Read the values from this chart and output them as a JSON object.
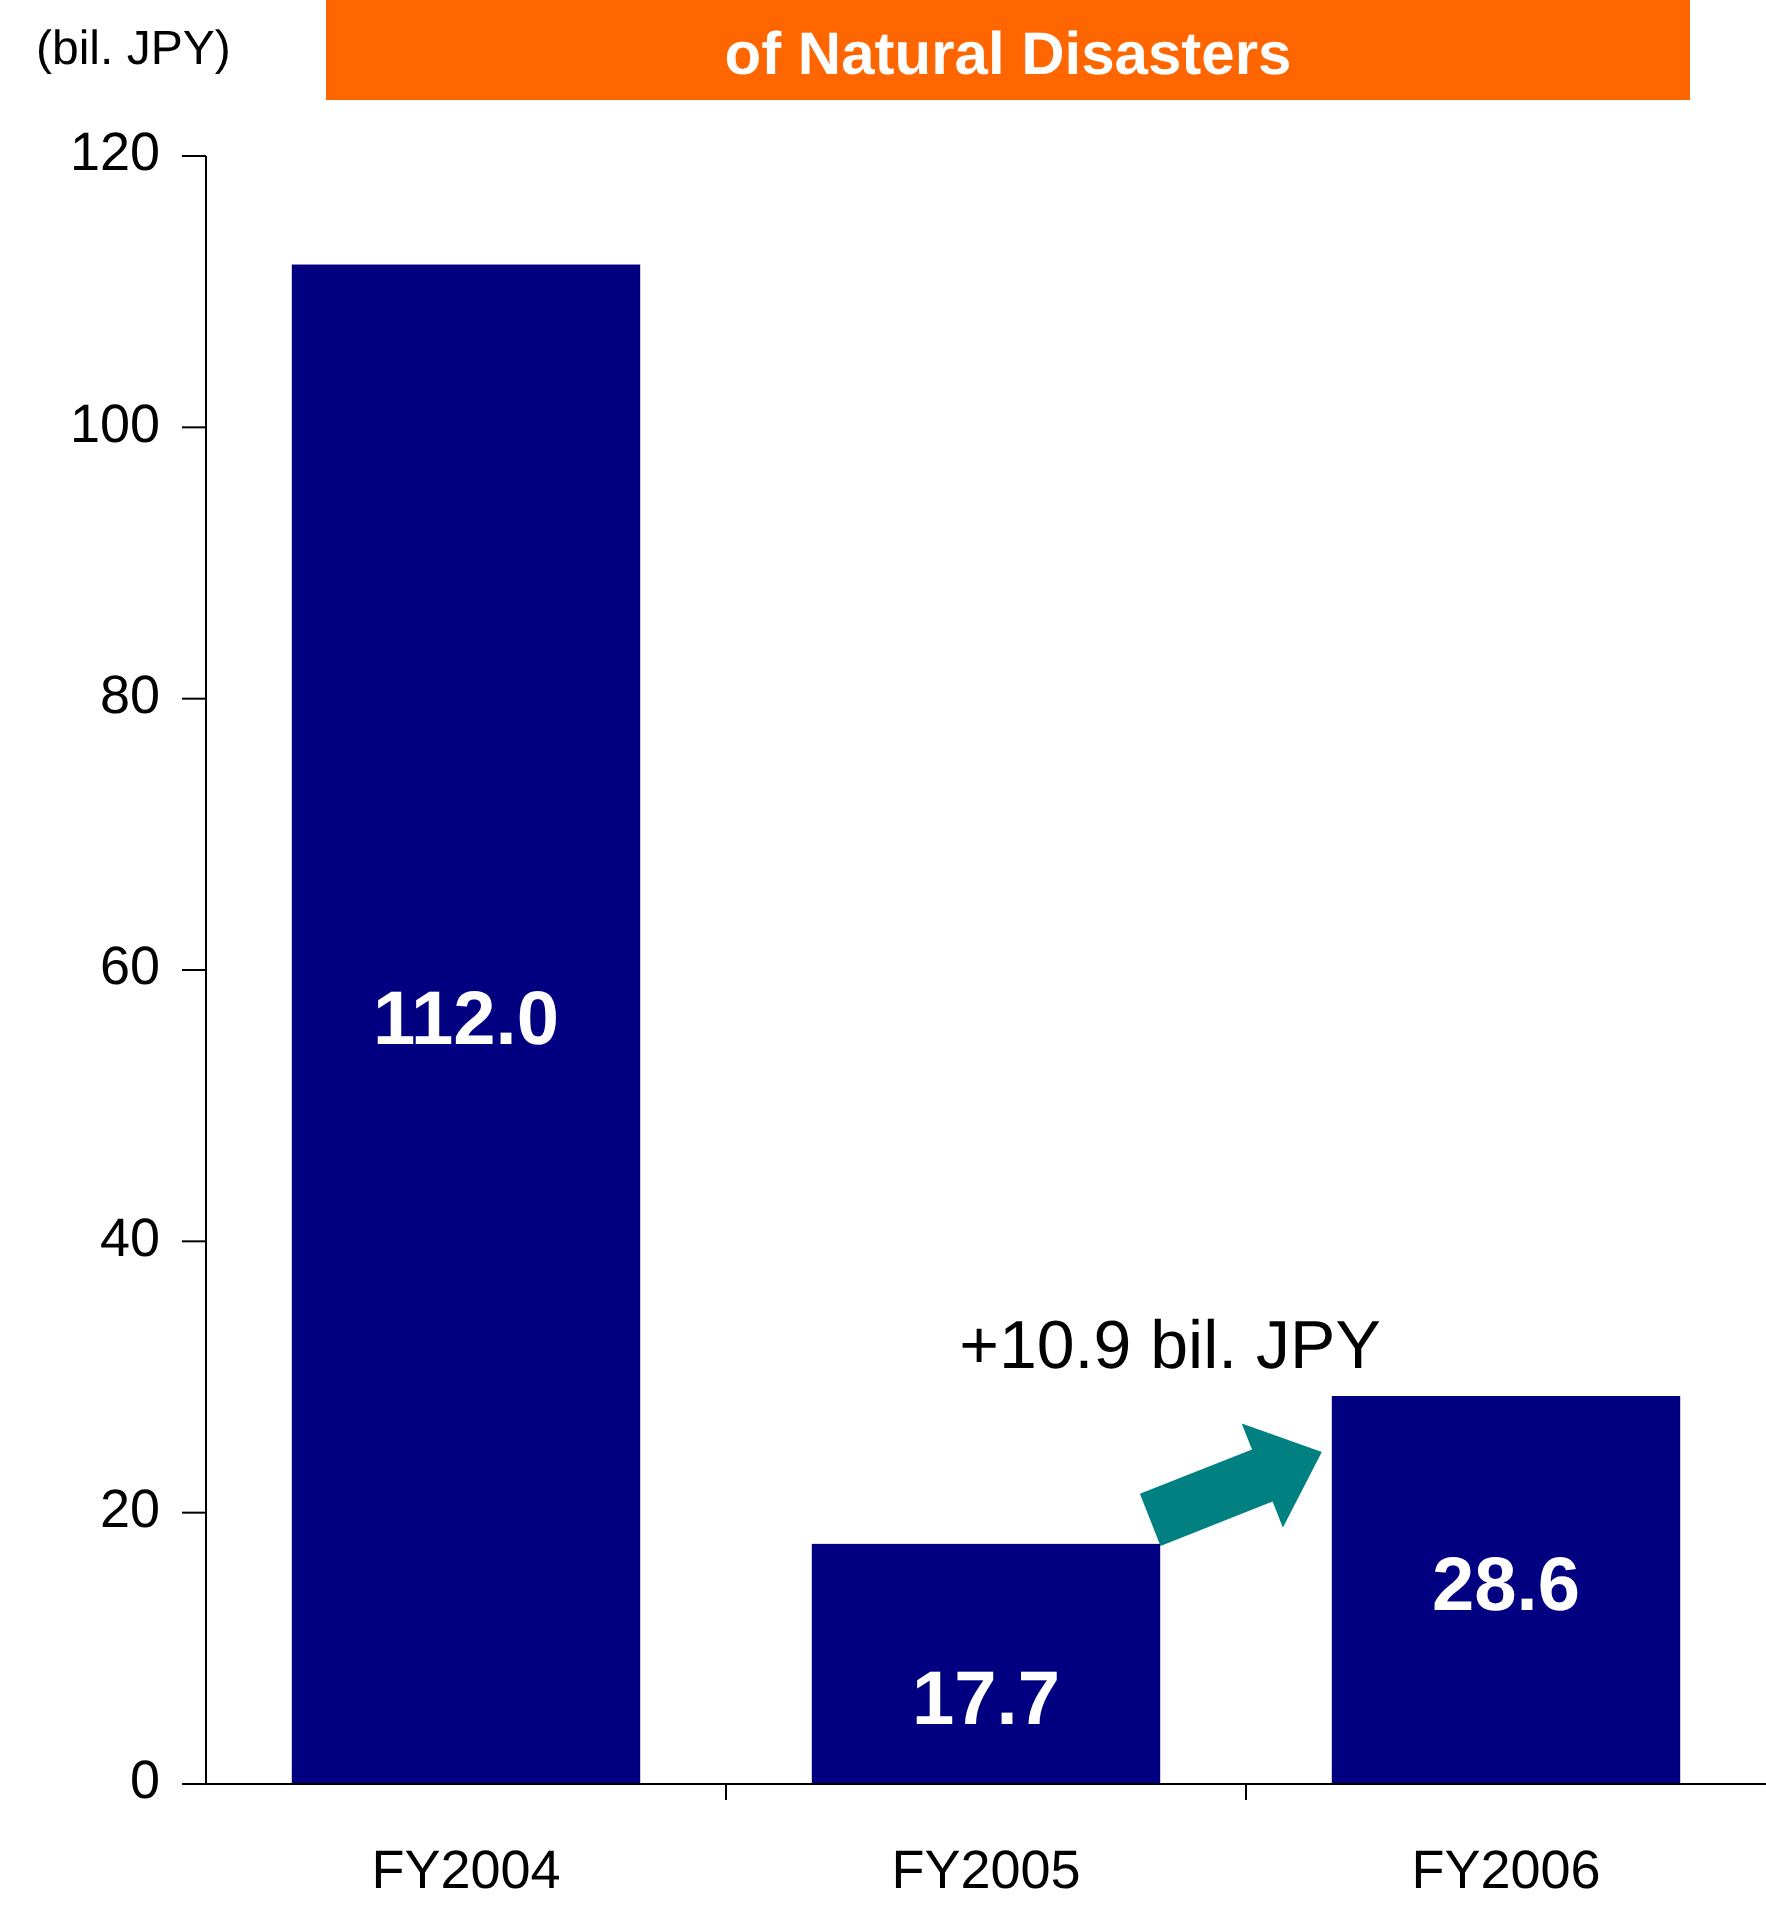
{
  "chart_data": {
    "type": "bar",
    "title": "of Natural Disasters",
    "ylabel": "(bil. JPY)",
    "categories": [
      "FY2004",
      "FY2005",
      "FY2006"
    ],
    "values": [
      112.0,
      17.7,
      28.6
    ],
    "color": "#000080",
    "ylim": [
      0,
      120
    ],
    "yticks": [
      0,
      20,
      40,
      60,
      80,
      100,
      120
    ],
    "grid": false,
    "value_labels": [
      "112.0",
      "17.7",
      "28.6"
    ],
    "annotations": [
      "+10.9 bil. JPY"
    ]
  }
}
